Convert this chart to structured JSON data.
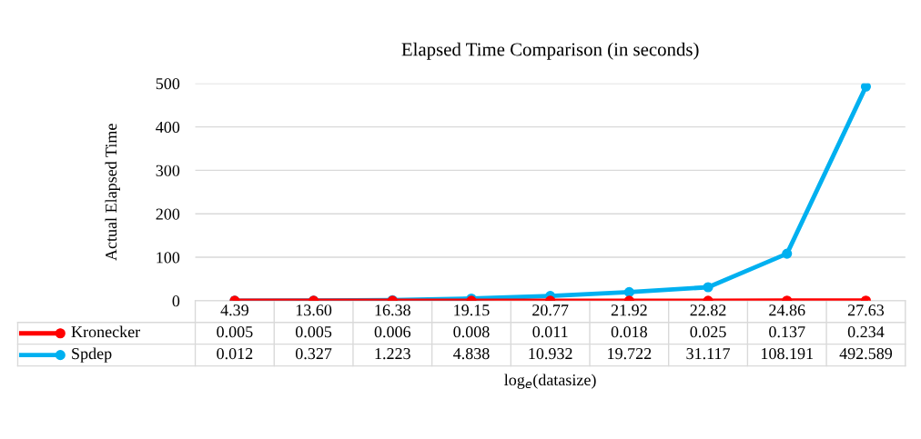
{
  "chart_data": {
    "type": "line",
    "title": "Elapsed Time Comparison (in seconds)",
    "xlabel": "log$_{e}$(datasize)",
    "ylabel": "Actual Elapsed Time",
    "categories": [
      "4.39",
      "13.60",
      "16.38",
      "19.15",
      "20.77",
      "21.92",
      "22.82",
      "24.86",
      "27.63"
    ],
    "series": [
      {
        "name": "Kronecker",
        "color": "#ff0000",
        "values": [
          0.005,
          0.005,
          0.006,
          0.008,
          0.011,
          0.018,
          0.025,
          0.137,
          0.234
        ]
      },
      {
        "name": "Spdep",
        "color": "#00b0f0",
        "values": [
          0.012,
          0.327,
          1.223,
          4.838,
          10.932,
          19.722,
          31.117,
          108.191,
          492.589
        ]
      }
    ],
    "ylim": [
      0,
      500
    ],
    "yticks": [
      0,
      100,
      200,
      300,
      400,
      500
    ],
    "grid": "y",
    "marker": "circle",
    "line_style": "solid",
    "data_labels": true,
    "legend": "bottom"
  }
}
